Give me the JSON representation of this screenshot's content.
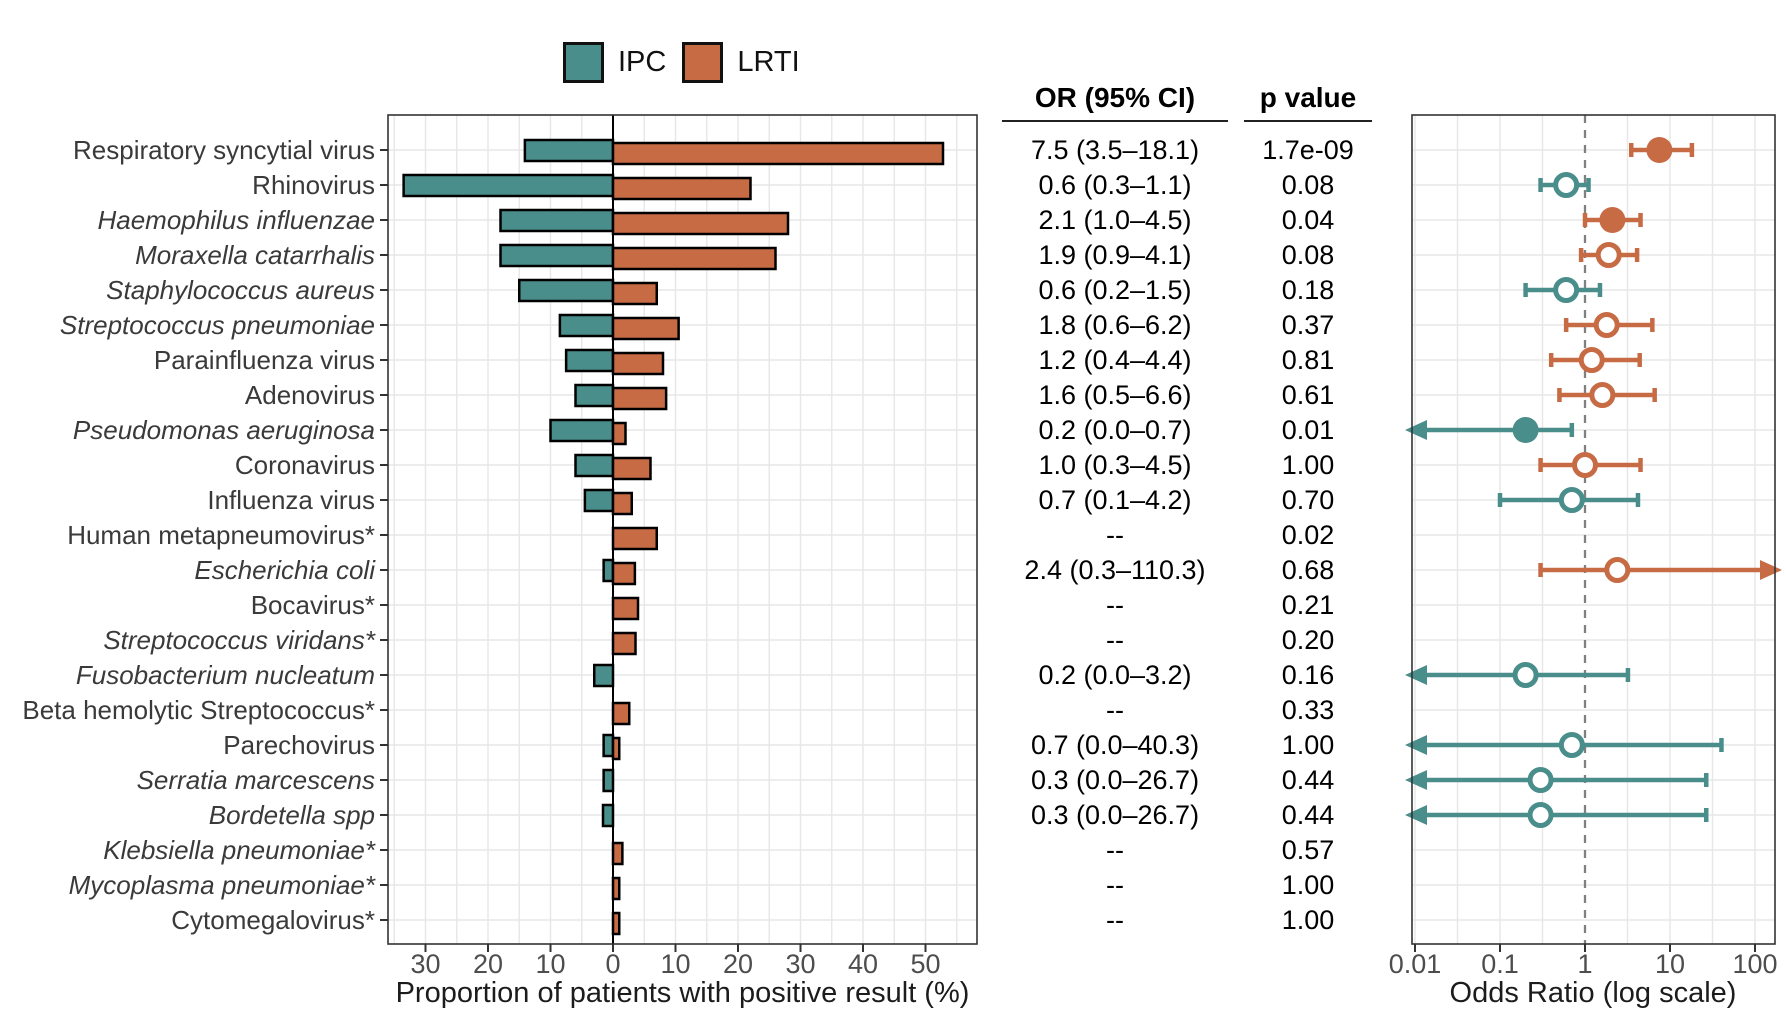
{
  "legend": {
    "items": [
      {
        "label": "IPC",
        "color": "#4A8E8B"
      },
      {
        "label": "LRTI",
        "color": "#C76B45"
      }
    ]
  },
  "axes": {
    "bar_xlabel": "Proportion of patients with positive result (%)",
    "forest_xlabel": "Odds Ratio (log scale)"
  },
  "table": {
    "headers": [
      "OR (95% CI)",
      "p value"
    ]
  },
  "colors": {
    "ipc": "#4A8E8B",
    "lrti": "#C76B45",
    "bar_stroke": "#000000",
    "grid": "#E7E7E7",
    "panel_border": "#333333",
    "zero_line": "#000000",
    "ref_dash": "#808080",
    "tick_text": "#4D4D4D",
    "label_text": "#3A3A3A"
  },
  "chart_data": [
    {
      "type": "bar",
      "subtype": "diverging-horizontal",
      "title": "",
      "xlabel": "Proportion of patients with positive result (%)",
      "x_ticks_pos": [
        -30,
        -20,
        -10,
        0,
        10,
        20,
        30,
        40,
        50
      ],
      "x_ticks_label": [
        "30",
        "20",
        "10",
        "0",
        "10",
        "20",
        "30",
        "40",
        "50"
      ],
      "xlim": [
        -36,
        58
      ],
      "grid": true,
      "categories": [
        "Respiratory syncytial virus",
        "Rhinovirus",
        "Haemophilus influenzae",
        "Moraxella catarrhalis",
        "Staphylococcus aureus",
        "Streptococcus pneumoniae",
        "Parainfluenza virus",
        "Adenovirus",
        "Pseudomonas aeruginosa",
        "Coronavirus",
        "Influenza virus",
        "Human metapneumovirus*",
        "Escherichia coli",
        "Bocavirus*",
        "Streptococcus viridans*",
        "Fusobacterium nucleatum",
        "Beta hemolytic Streptococcus*",
        "Parechovirus",
        "Serratia marcescens",
        "Bordetella spp",
        "Klebsiella pneumoniae*",
        "Mycoplasma pneumoniae*",
        "Cytomegalovirus*"
      ],
      "italic_flags": [
        false,
        false,
        true,
        true,
        true,
        true,
        false,
        false,
        true,
        false,
        false,
        false,
        true,
        false,
        true,
        true,
        false,
        false,
        true,
        true,
        true,
        true,
        false
      ],
      "series": [
        {
          "name": "IPC",
          "direction": "left",
          "values": [
            14.1,
            33.5,
            18,
            18,
            15,
            8.5,
            7.5,
            6,
            10,
            6,
            4.5,
            0,
            1.5,
            0,
            0,
            3,
            0,
            1.5,
            1.5,
            1.6,
            0,
            0,
            0
          ]
        },
        {
          "name": "LRTI",
          "direction": "right",
          "values": [
            52.8,
            22,
            28,
            26,
            7,
            10.5,
            8,
            8.5,
            2,
            6,
            3,
            7,
            3.5,
            4,
            3.6,
            0,
            2.6,
            1,
            0,
            0,
            1.5,
            1,
            1
          ]
        }
      ]
    },
    {
      "type": "scatter",
      "subtype": "forest-plot",
      "xlabel": "Odds Ratio (log scale)",
      "x_scale": "log10",
      "x_ticks": [
        0.01,
        0.1,
        1,
        10,
        100
      ],
      "x_ticks_label": [
        "0.01",
        "0.1",
        "1",
        "10",
        "100"
      ],
      "reference_line": 1,
      "grid": true,
      "points": [
        {
          "or": 7.5,
          "lo": 3.5,
          "hi": 18.1,
          "group": "LRTI",
          "filled": true,
          "arrow_left": false,
          "arrow_right": false
        },
        {
          "or": 0.6,
          "lo": 0.3,
          "hi": 1.1,
          "group": "IPC",
          "filled": false,
          "arrow_left": false,
          "arrow_right": false
        },
        {
          "or": 2.1,
          "lo": 1.0,
          "hi": 4.5,
          "group": "LRTI",
          "filled": true,
          "arrow_left": false,
          "arrow_right": false
        },
        {
          "or": 1.9,
          "lo": 0.9,
          "hi": 4.1,
          "group": "LRTI",
          "filled": false,
          "arrow_left": false,
          "arrow_right": false
        },
        {
          "or": 0.6,
          "lo": 0.2,
          "hi": 1.5,
          "group": "IPC",
          "filled": false,
          "arrow_left": false,
          "arrow_right": false
        },
        {
          "or": 1.8,
          "lo": 0.6,
          "hi": 6.2,
          "group": "LRTI",
          "filled": false,
          "arrow_left": false,
          "arrow_right": false
        },
        {
          "or": 1.2,
          "lo": 0.4,
          "hi": 4.4,
          "group": "LRTI",
          "filled": false,
          "arrow_left": false,
          "arrow_right": false
        },
        {
          "or": 1.6,
          "lo": 0.5,
          "hi": 6.6,
          "group": "LRTI",
          "filled": false,
          "arrow_left": false,
          "arrow_right": false
        },
        {
          "or": 0.2,
          "lo": null,
          "hi": 0.7,
          "group": "IPC",
          "filled": true,
          "arrow_left": true,
          "arrow_right": false
        },
        {
          "or": 1.0,
          "lo": 0.3,
          "hi": 4.5,
          "group": "LRTI",
          "filled": false,
          "arrow_left": false,
          "arrow_right": false
        },
        {
          "or": 0.7,
          "lo": 0.1,
          "hi": 4.2,
          "group": "IPC",
          "filled": false,
          "arrow_left": false,
          "arrow_right": false
        },
        null,
        {
          "or": 2.4,
          "lo": 0.3,
          "hi": null,
          "group": "LRTI",
          "filled": false,
          "arrow_left": false,
          "arrow_right": true
        },
        null,
        null,
        {
          "or": 0.2,
          "lo": null,
          "hi": 3.2,
          "group": "IPC",
          "filled": false,
          "arrow_left": true,
          "arrow_right": false
        },
        null,
        {
          "or": 0.7,
          "lo": null,
          "hi": 40.3,
          "group": "IPC",
          "filled": false,
          "arrow_left": true,
          "arrow_right": false
        },
        {
          "or": 0.3,
          "lo": null,
          "hi": 26.7,
          "group": "IPC",
          "filled": false,
          "arrow_left": true,
          "arrow_right": false
        },
        {
          "or": 0.3,
          "lo": null,
          "hi": 26.7,
          "group": "IPC",
          "filled": false,
          "arrow_left": true,
          "arrow_right": false
        },
        null,
        null,
        null
      ]
    }
  ],
  "table_rows": [
    {
      "or_ci": "7.5 (3.5–18.1)",
      "p": "1.7e-09"
    },
    {
      "or_ci": "0.6 (0.3–1.1)",
      "p": "0.08"
    },
    {
      "or_ci": "2.1 (1.0–4.5)",
      "p": "0.04"
    },
    {
      "or_ci": "1.9 (0.9–4.1)",
      "p": "0.08"
    },
    {
      "or_ci": "0.6 (0.2–1.5)",
      "p": "0.18"
    },
    {
      "or_ci": "1.8 (0.6–6.2)",
      "p": "0.37"
    },
    {
      "or_ci": "1.2 (0.4–4.4)",
      "p": "0.81"
    },
    {
      "or_ci": "1.6 (0.5–6.6)",
      "p": "0.61"
    },
    {
      "or_ci": "0.2 (0.0–0.7)",
      "p": "0.01"
    },
    {
      "or_ci": "1.0 (0.3–4.5)",
      "p": "1.00"
    },
    {
      "or_ci": "0.7 (0.1–4.2)",
      "p": "0.70"
    },
    {
      "or_ci": "--",
      "p": "0.02"
    },
    {
      "or_ci": "2.4 (0.3–110.3)",
      "p": "0.68"
    },
    {
      "or_ci": "--",
      "p": "0.21"
    },
    {
      "or_ci": "--",
      "p": "0.20"
    },
    {
      "or_ci": "0.2 (0.0–3.2)",
      "p": "0.16"
    },
    {
      "or_ci": "--",
      "p": "0.33"
    },
    {
      "or_ci": "0.7 (0.0–40.3)",
      "p": "1.00"
    },
    {
      "or_ci": "0.3 (0.0–26.7)",
      "p": "0.44"
    },
    {
      "or_ci": "0.3 (0.0–26.7)",
      "p": "0.44"
    },
    {
      "or_ci": "--",
      "p": "0.57"
    },
    {
      "or_ci": "--",
      "p": "1.00"
    },
    {
      "or_ci": "--",
      "p": "1.00"
    }
  ]
}
